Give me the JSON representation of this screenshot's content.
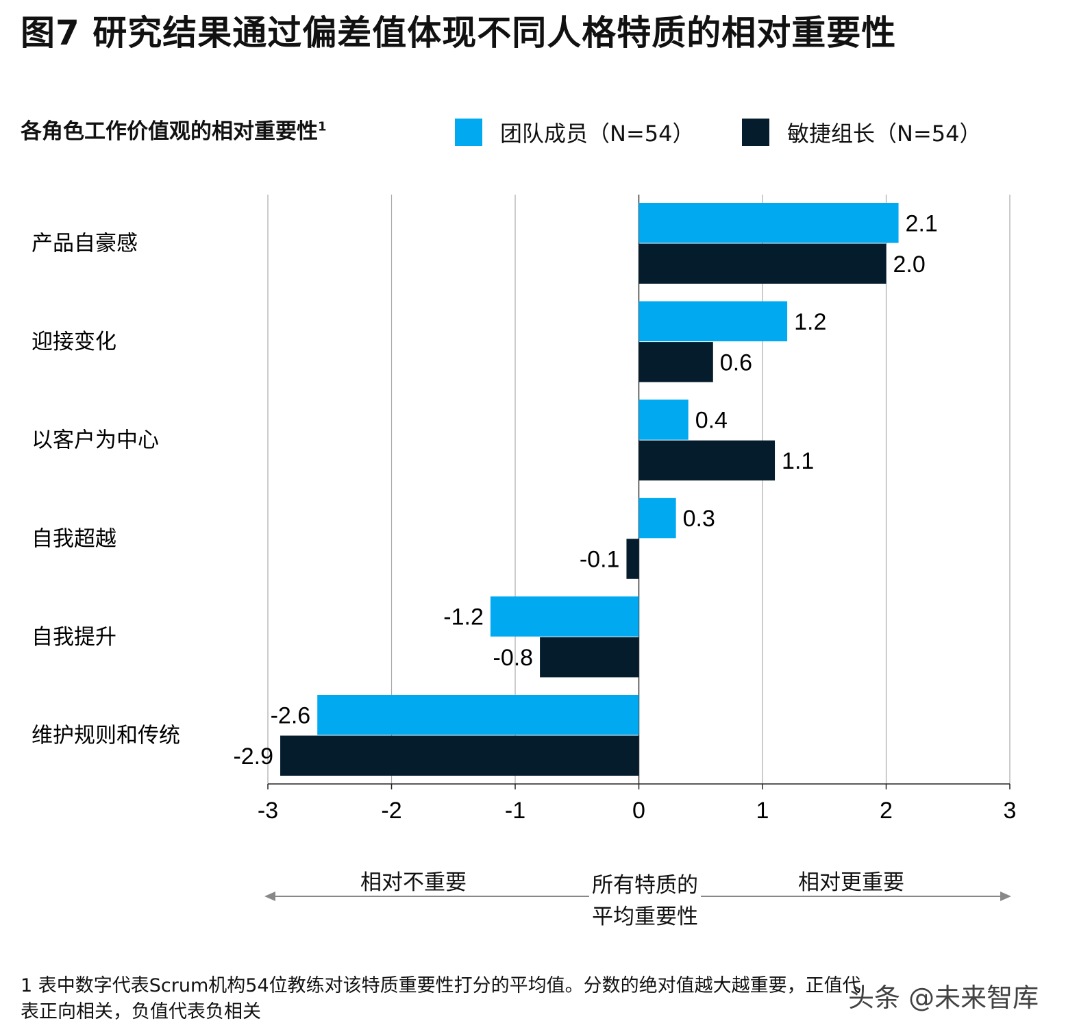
{
  "title": "图7 研究结果通过偏差值体现不同人格特质的相对重要性",
  "chart_data": {
    "type": "bar",
    "orientation": "horizontal",
    "title": "各角色工作价值观的相对重要性",
    "title_superscript": "1",
    "categories": [
      "产品自豪感",
      "迎接变化",
      "以客户为中心",
      "自我超越",
      "自我提升",
      "维护规则和传统"
    ],
    "series": [
      {
        "name": "团队成员（N=54）",
        "color": "#00A9F0",
        "values": [
          2.1,
          1.2,
          0.4,
          0.3,
          -1.2,
          -2.6
        ]
      },
      {
        "name": "敏捷组长（N=54）",
        "color": "#051C2C",
        "values": [
          2.0,
          0.6,
          1.1,
          -0.1,
          -0.8,
          -2.9
        ]
      }
    ],
    "xlim": [
      -3,
      3
    ],
    "xticks": [
      "-3",
      "-2",
      "-1",
      "0",
      "1",
      "2",
      "3"
    ],
    "grid": true,
    "legend": "top",
    "annotations": {
      "left": "相对不重要",
      "center_line1": "所有特质的",
      "center_line2": "平均重要性",
      "right": "相对更重要"
    }
  },
  "footnote": {
    "line1": "1 表中数字代表Scrum机构54位教练对该特质重要性打分的平均值。分数的绝对值越大越重要，正值代",
    "line2": "表正向相关，负值代表负相关"
  },
  "watermark": "头条 @未来智库"
}
